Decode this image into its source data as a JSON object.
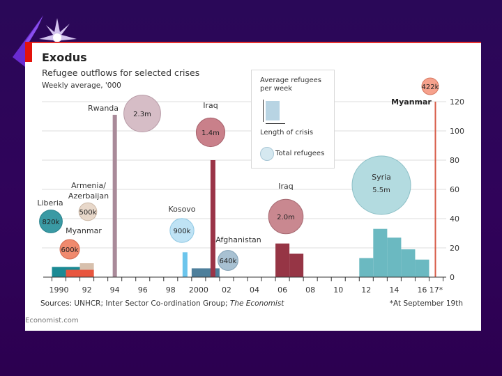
{
  "chart_data": {
    "type": "bar",
    "title": "Exodus",
    "subtitle": "Refugee outflows for selected crises",
    "ylabel": "Weekly average, '000",
    "xlabel": "",
    "ylim": [
      0,
      120
    ],
    "yticks": [
      0,
      20,
      40,
      60,
      80,
      100,
      120
    ],
    "xlim": [
      1989.5,
      2017.5
    ],
    "xtick_labels": [
      {
        "year": 1990,
        "label": "1990"
      },
      {
        "year": 1992,
        "label": "92"
      },
      {
        "year": 1994,
        "label": "94"
      },
      {
        "year": 1996,
        "label": "96"
      },
      {
        "year": 1998,
        "label": "98"
      },
      {
        "year": 2000,
        "label": "2000"
      },
      {
        "year": 2002,
        "label": "02"
      },
      {
        "year": 2004,
        "label": "04"
      },
      {
        "year": 2006,
        "label": "06"
      },
      {
        "year": 2008,
        "label": "08"
      },
      {
        "year": 2010,
        "label": "10"
      },
      {
        "year": 2012,
        "label": "12"
      },
      {
        "year": 2014,
        "label": "14"
      },
      {
        "year": 2016,
        "label": "16"
      },
      {
        "year": 2017,
        "label": "17*"
      }
    ],
    "grid": true,
    "series": [
      {
        "name": "Liberia",
        "total": "820k",
        "color": "#1b8a94",
        "bars": [
          {
            "start": 1989.5,
            "end": 1991.5,
            "value": 7
          }
        ]
      },
      {
        "name": "Armenia/Azerbaijan",
        "total": "500k",
        "color": "#d7c0ad",
        "bars": [
          {
            "start": 1991.5,
            "end": 1992.5,
            "value": 9.5
          }
        ]
      },
      {
        "name": "Myanmar",
        "total": "600k",
        "color": "#e8563f",
        "bars": [
          {
            "start": 1990.5,
            "end": 1992.5,
            "value": 5
          }
        ]
      },
      {
        "name": "Rwanda",
        "total": "2.3m",
        "color": "#a98a99",
        "bars": [
          {
            "start": 1993.85,
            "end": 1994.15,
            "value": 111
          }
        ]
      },
      {
        "name": "Kosovo",
        "total": "900k",
        "color": "#6cc5ec",
        "bars": [
          {
            "start": 1998.85,
            "end": 1999.2,
            "value": 17
          }
        ]
      },
      {
        "name": "Afghanistan",
        "total": "640k",
        "color": "#4e7f9b",
        "bars": [
          {
            "start": 1999.5,
            "end": 2001.5,
            "value": 6
          }
        ]
      },
      {
        "name": "Iraq",
        "total": "1.4m",
        "color": "#9a3447",
        "bars": [
          {
            "start": 2000.85,
            "end": 2001.2,
            "value": 80
          }
        ]
      },
      {
        "name": "Iraq",
        "total": "2.0m",
        "color": "#963545",
        "bars": [
          {
            "start": 2005.5,
            "end": 2006.5,
            "value": 23
          },
          {
            "start": 2006.5,
            "end": 2007.5,
            "value": 16
          }
        ]
      },
      {
        "name": "Syria",
        "total": "5.5m",
        "color": "#6bb9c1",
        "bars": [
          {
            "start": 2011.5,
            "end": 2012.5,
            "value": 13
          },
          {
            "start": 2012.5,
            "end": 2013.5,
            "value": 33
          },
          {
            "start": 2013.5,
            "end": 2014.5,
            "value": 27
          },
          {
            "start": 2014.5,
            "end": 2015.5,
            "value": 19
          },
          {
            "start": 2015.5,
            "end": 2016.5,
            "value": 12
          }
        ]
      },
      {
        "name": "Myanmar",
        "total": "422k",
        "color": "#d85c48",
        "bars": [
          {
            "start": 2016.9,
            "end": 2016.98,
            "value": 120
          }
        ]
      }
    ],
    "bubbles": [
      {
        "label": "Liberia",
        "total": "820k",
        "fill": "#3a9aa4",
        "stroke": "#27818b",
        "radius_rel": 0.82
      },
      {
        "label": "Armenia/ Azerbaijan",
        "total": "500k",
        "fill": "#e8d8ca",
        "stroke": "#cbb7a5",
        "radius_rel": 0.64
      },
      {
        "label": "Myanmar",
        "total": "600k",
        "fill": "#f08a6e",
        "stroke": "#d56a50",
        "radius_rel": 0.7
      },
      {
        "label": "Rwanda",
        "total": "2.3m",
        "fill": "#d6bdc6",
        "stroke": "#b79aa6",
        "radius_rel": 1.32
      },
      {
        "label": "Iraq",
        "total": "1.4m",
        "fill": "#c9808a",
        "stroke": "#a6606b",
        "radius_rel": 1.03
      },
      {
        "label": "Kosovo",
        "total": "900k",
        "fill": "#bfe3f5",
        "stroke": "#90c8e3",
        "radius_rel": 0.86
      },
      {
        "label": "Afghanistan",
        "total": "640k",
        "fill": "#a8c1d2",
        "stroke": "#7f9fb4",
        "radius_rel": 0.72
      },
      {
        "label": "Iraq",
        "total": "2.0m",
        "fill": "#c98890",
        "stroke": "#a66a72",
        "radius_rel": 1.24
      },
      {
        "label": "Syria",
        "total": "5.5m",
        "fill": "#b3dbe0",
        "stroke": "#8cbfc6",
        "radius_rel": 2.1
      },
      {
        "label": "Myanmar",
        "total": "422k",
        "fill": "#f6a18c",
        "stroke": "#d77a63",
        "radius_rel": 0.6
      }
    ],
    "legend": {
      "bar_label": "Average refugees per week",
      "axis_label": "Length of crisis",
      "bubble_label": "Total refugees",
      "placement": "top-center"
    },
    "annotations": [
      "*At September 19th"
    ]
  },
  "header": {
    "title": "Exodus",
    "subtitle": "Refugee outflows for selected crises",
    "units": "Weekly average, '000"
  },
  "footer": {
    "source_prefix": "Sources: UNHCR; Inter Sector Co-ordination Group; ",
    "source_italic": "The Economist",
    "footnote": "*At September 19th",
    "brand": "Economist.com"
  },
  "legend": {
    "line1": "Average refugees",
    "line2": "per week",
    "axis": "Length of crisis",
    "bubble": "Total refugees"
  }
}
